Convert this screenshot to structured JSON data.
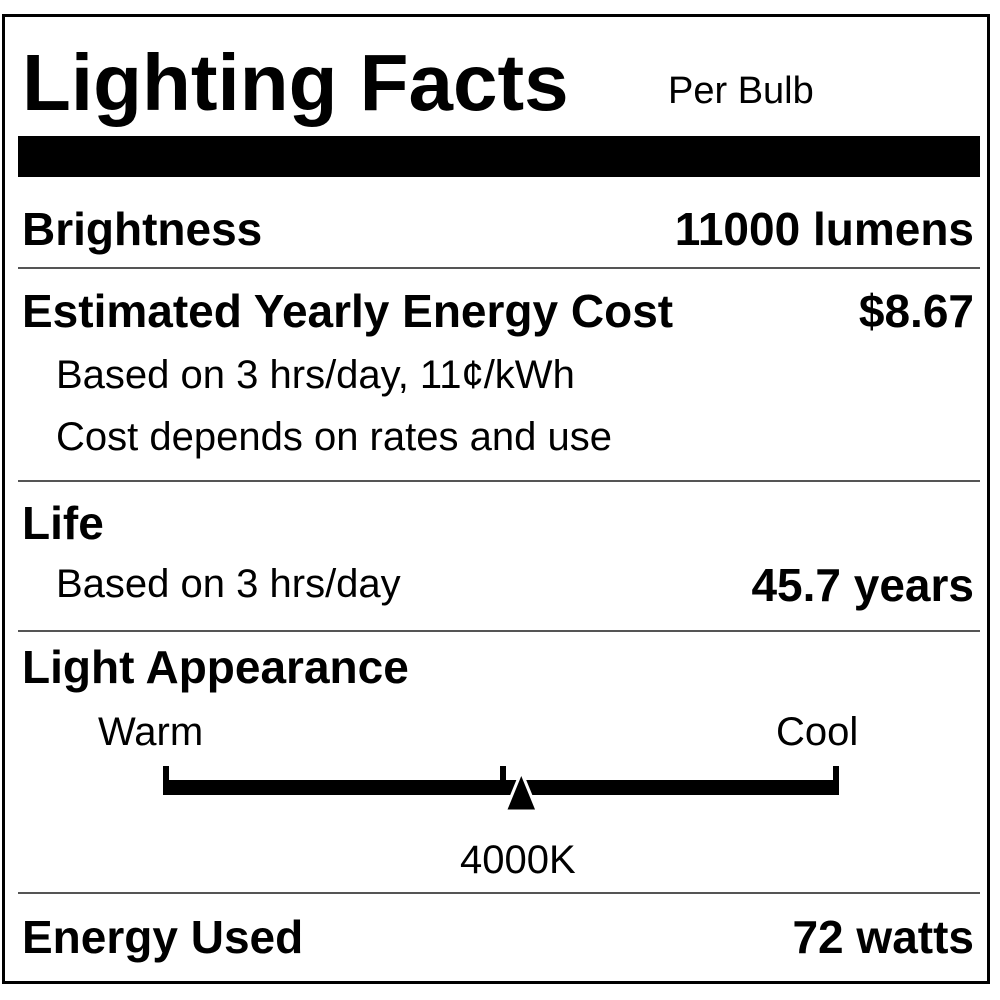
{
  "title": "Lighting Facts",
  "subtitle": "Per Bulb",
  "brightness": {
    "label": "Brightness",
    "value": "11000 lumens"
  },
  "energy_cost": {
    "label": "Estimated Yearly Energy Cost",
    "value": "$8.67",
    "note1": "Based on 3 hrs/day, 11¢/kWh",
    "note2": "Cost depends on rates and use"
  },
  "life": {
    "label": "Life",
    "note": "Based on 3 hrs/day",
    "value": "45.7 years"
  },
  "light_appearance": {
    "label": "Light Appearance",
    "warm_label": "Warm",
    "cool_label": "Cool",
    "value": "4000K",
    "position_fraction": 0.53
  },
  "energy_used": {
    "label": "Energy Used",
    "value": "72 watts"
  }
}
